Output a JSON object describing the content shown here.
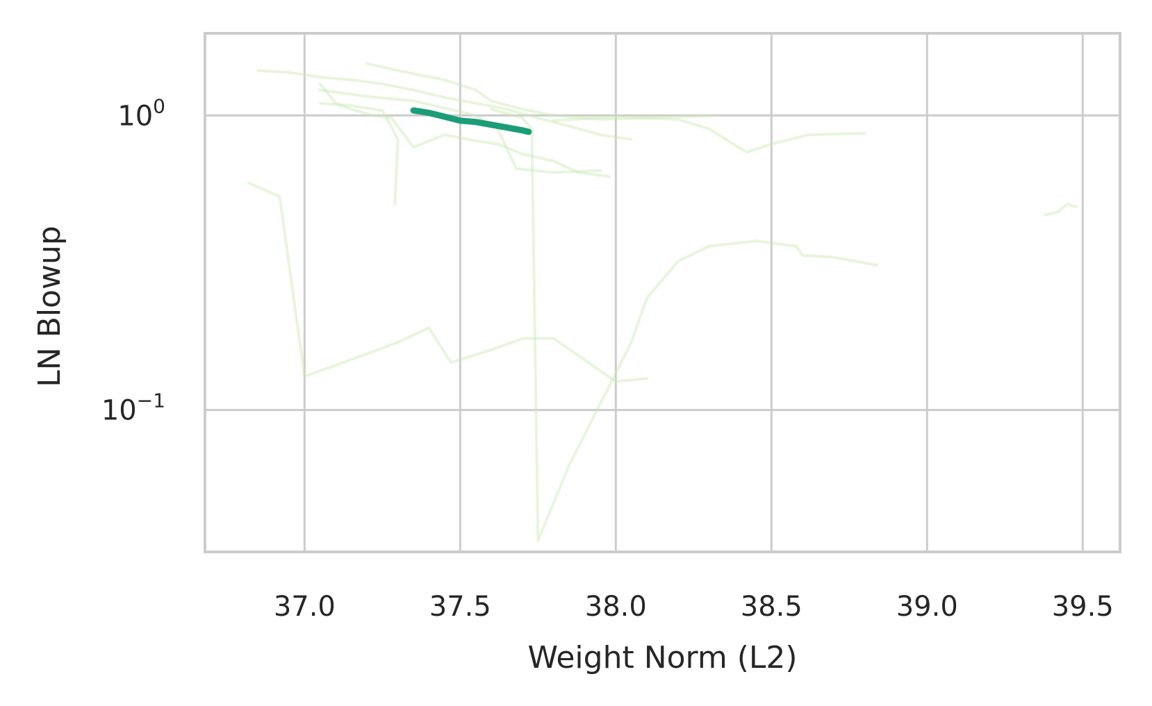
{
  "chart_data": {
    "type": "line",
    "xlabel": "Weight Norm (L2)",
    "ylabel": "LN Blowup",
    "xlim": [
      36.68,
      39.62
    ],
    "ylim": [
      0.033,
      1.9
    ],
    "y_scale": "log",
    "grid": true,
    "x_ticks": [
      {
        "value": 37.0,
        "label": "37.0"
      },
      {
        "value": 37.5,
        "label": "37.5"
      },
      {
        "value": 38.0,
        "label": "38.0"
      },
      {
        "value": 38.5,
        "label": "38.5"
      },
      {
        "value": 39.0,
        "label": "39.0"
      },
      {
        "value": 39.5,
        "label": "39.5"
      }
    ],
    "y_ticks": [
      {
        "value": 1.0,
        "base": "10",
        "exp": "0"
      },
      {
        "value": 0.1,
        "base": "10",
        "exp": "−1"
      }
    ],
    "colors": {
      "highlight": "#1b9e77",
      "background_runs": "#c9e8b4",
      "grid": "#cccccc",
      "text": "#262626"
    },
    "highlight": [
      [
        37.35,
        1.04
      ],
      [
        37.4,
        1.02
      ],
      [
        37.45,
        0.99
      ],
      [
        37.5,
        0.96
      ],
      [
        37.55,
        0.95
      ],
      [
        37.6,
        0.93
      ],
      [
        37.65,
        0.91
      ],
      [
        37.7,
        0.89
      ],
      [
        37.72,
        0.88
      ]
    ],
    "background_runs": [
      [
        [
          36.85,
          1.42
        ],
        [
          36.95,
          1.4
        ],
        [
          37.05,
          1.35
        ],
        [
          37.15,
          1.32
        ],
        [
          37.25,
          1.28
        ],
        [
          37.35,
          1.22
        ],
        [
          37.45,
          1.15
        ],
        [
          37.55,
          1.1
        ],
        [
          37.65,
          1.05
        ],
        [
          37.75,
          0.98
        ],
        [
          37.85,
          0.92
        ],
        [
          37.95,
          0.86
        ],
        [
          38.05,
          0.83
        ]
      ],
      [
        [
          36.82,
          0.59
        ],
        [
          36.87,
          0.56
        ],
        [
          36.92,
          0.53
        ],
        [
          37.0,
          0.13
        ],
        [
          37.2,
          0.155
        ],
        [
          37.3,
          0.17
        ],
        [
          37.4,
          0.19
        ],
        [
          37.47,
          0.145
        ],
        [
          37.6,
          0.16
        ],
        [
          37.7,
          0.175
        ],
        [
          37.8,
          0.175
        ],
        [
          38.0,
          0.125
        ],
        [
          38.1,
          0.128
        ]
      ],
      [
        [
          37.2,
          1.5
        ],
        [
          37.3,
          1.42
        ],
        [
          37.45,
          1.32
        ],
        [
          37.55,
          1.22
        ],
        [
          37.6,
          1.12
        ],
        [
          37.7,
          1.05
        ],
        [
          37.8,
          1.0
        ],
        [
          37.95,
          0.97
        ],
        [
          38.1,
          0.98
        ],
        [
          38.2,
          0.99
        ],
        [
          38.32,
          1.0
        ]
      ],
      [
        [
          37.05,
          1.28
        ],
        [
          37.1,
          1.1
        ],
        [
          37.15,
          1.05
        ],
        [
          37.22,
          1.0
        ],
        [
          37.28,
          0.98
        ],
        [
          37.35,
          0.78
        ],
        [
          37.45,
          0.86
        ],
        [
          37.55,
          0.82
        ],
        [
          37.62,
          0.8
        ],
        [
          37.7,
          0.74
        ],
        [
          37.8,
          0.7
        ],
        [
          37.88,
          0.64
        ],
        [
          37.98,
          0.62
        ]
      ],
      [
        [
          37.05,
          1.1
        ],
        [
          37.15,
          1.08
        ],
        [
          37.25,
          1.04
        ],
        [
          37.3,
          0.83
        ],
        [
          37.29,
          0.5
        ]
      ],
      [
        [
          37.6,
          1.05
        ],
        [
          37.7,
          0.98
        ],
        [
          37.73,
          0.9
        ],
        [
          37.75,
          0.036
        ],
        [
          37.85,
          0.065
        ],
        [
          37.95,
          0.105
        ],
        [
          38.05,
          0.17
        ],
        [
          38.1,
          0.24
        ],
        [
          38.2,
          0.32
        ],
        [
          38.3,
          0.36
        ],
        [
          38.45,
          0.375
        ],
        [
          38.58,
          0.36
        ],
        [
          38.6,
          0.335
        ],
        [
          38.7,
          0.33
        ],
        [
          38.84,
          0.31
        ]
      ],
      [
        [
          37.8,
          0.96
        ],
        [
          38.0,
          0.99
        ],
        [
          38.2,
          0.97
        ],
        [
          38.3,
          0.9
        ],
        [
          38.42,
          0.75
        ],
        [
          38.5,
          0.8
        ],
        [
          38.62,
          0.86
        ],
        [
          38.8,
          0.87
        ]
      ],
      [
        [
          39.38,
          0.46
        ],
        [
          39.42,
          0.47
        ],
        [
          39.45,
          0.5
        ],
        [
          39.48,
          0.49
        ]
      ],
      [
        [
          37.05,
          1.22
        ],
        [
          37.2,
          1.16
        ],
        [
          37.35,
          1.12
        ],
        [
          37.45,
          1.06
        ],
        [
          37.55,
          1.0
        ],
        [
          37.62,
          0.9
        ],
        [
          37.68,
          0.66
        ],
        [
          37.8,
          0.64
        ],
        [
          37.95,
          0.65
        ]
      ]
    ]
  }
}
